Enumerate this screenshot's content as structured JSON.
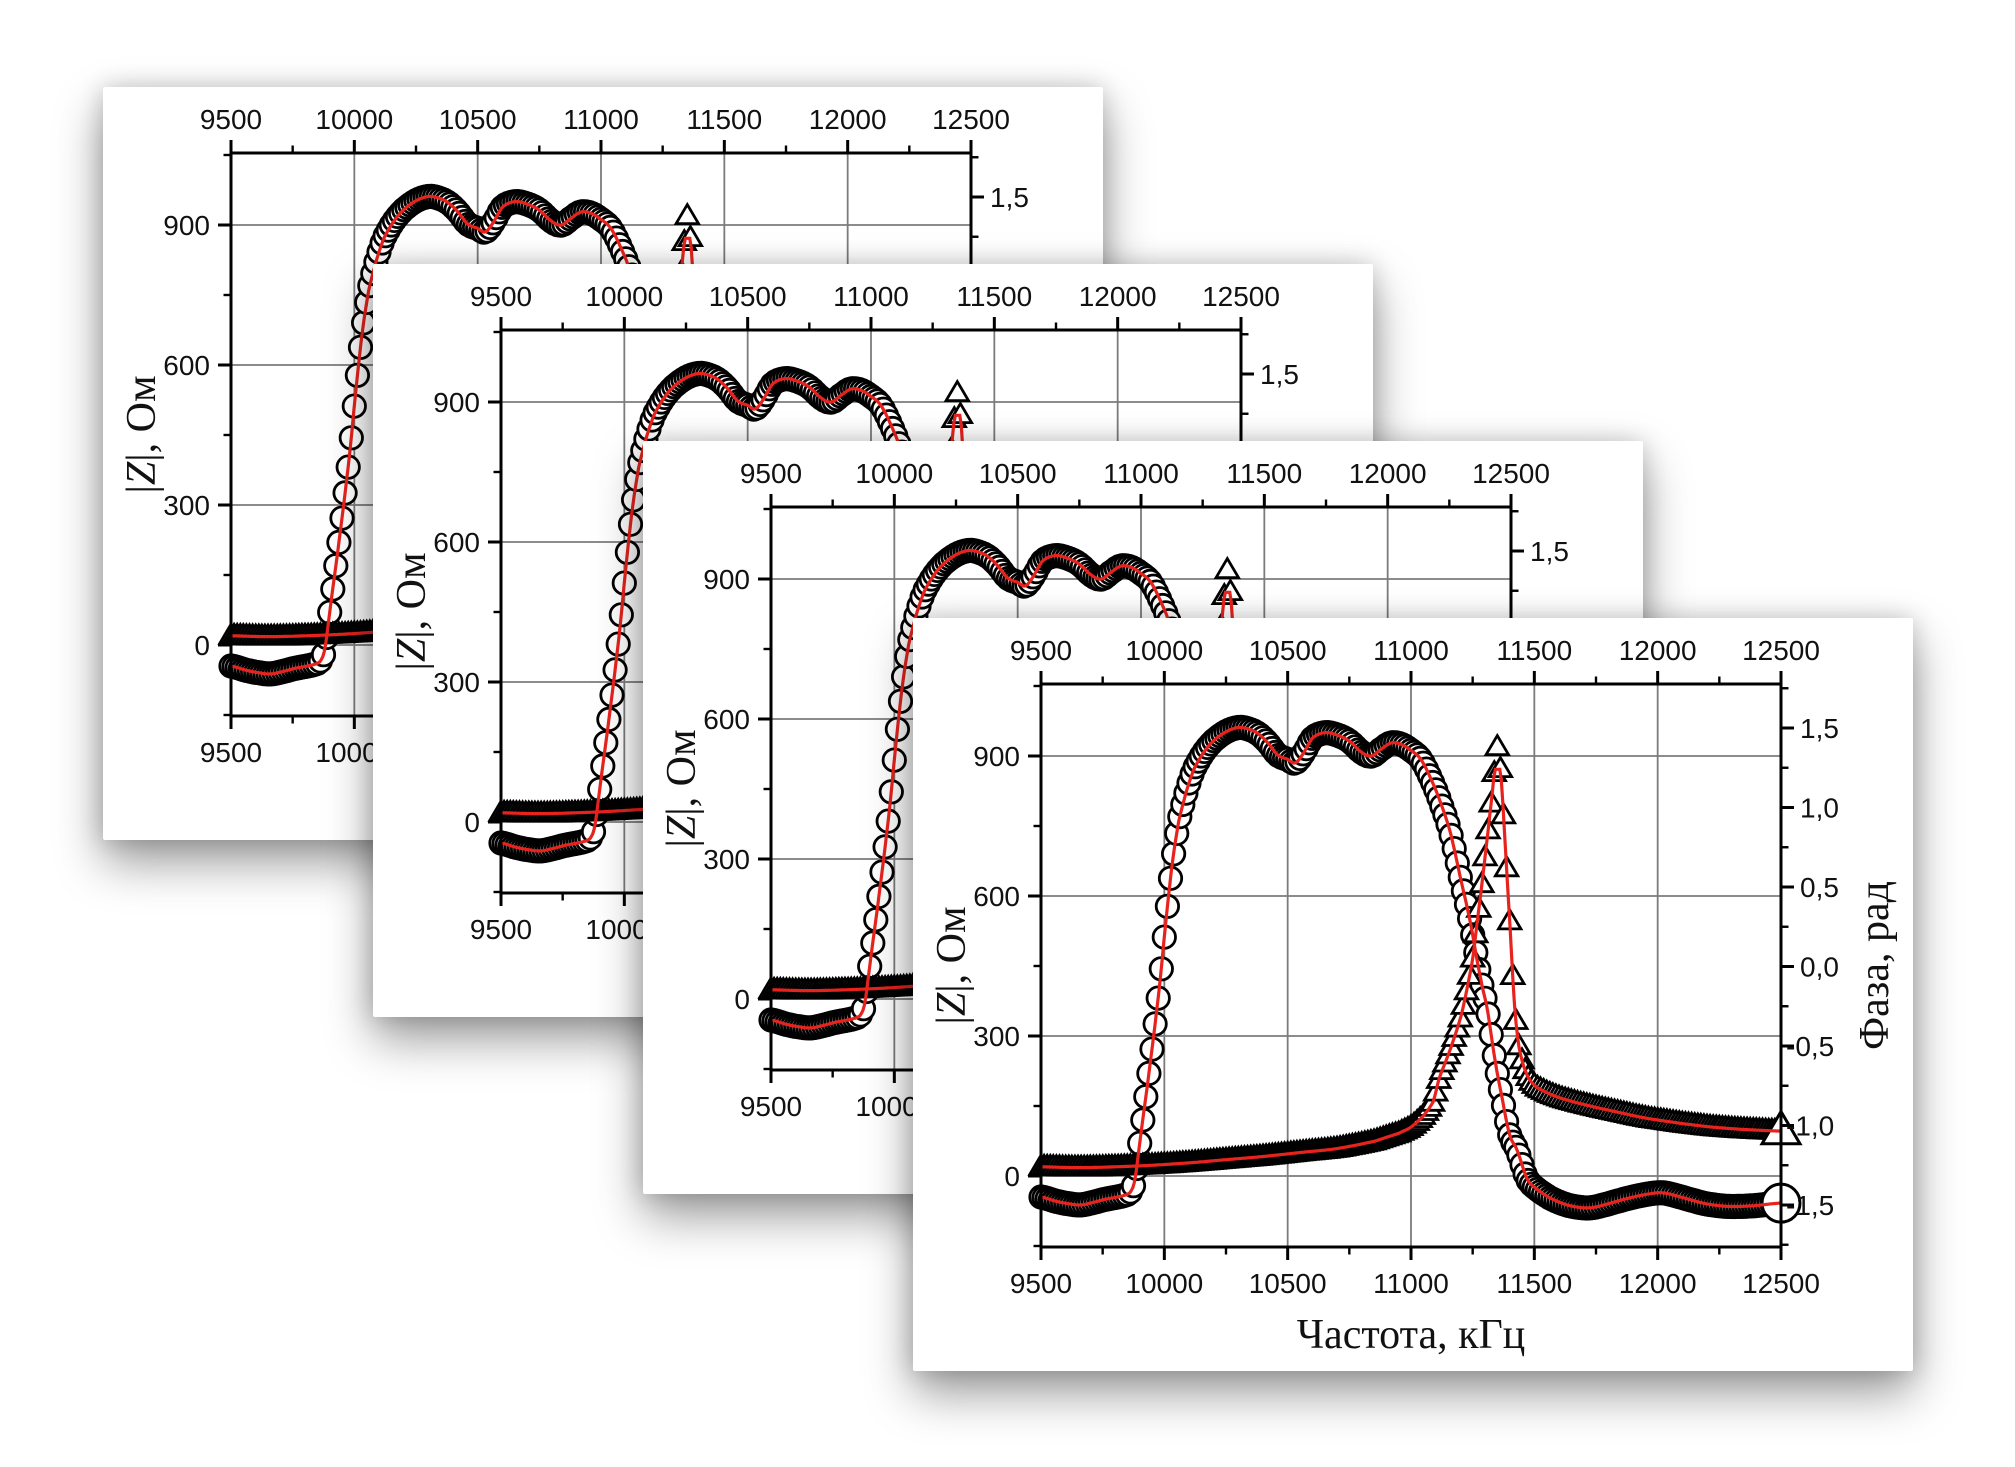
{
  "figure": {
    "background_color": "#ffffff",
    "description": "Four cascaded identical impedance/phase vs frequency plots on white cards",
    "cards": [
      {
        "name": "chart-card-1"
      },
      {
        "name": "chart-card-2"
      },
      {
        "name": "chart-card-3"
      },
      {
        "name": "chart-card-4"
      }
    ]
  },
  "chart_data": {
    "type": "scatter",
    "title": "",
    "xlabel": "Частота, кГц",
    "ylabel_left": "|Z|, Ом",
    "ylabel_right": "Фаза, рад",
    "x_axis": {
      "min": 9500,
      "max": 12500,
      "major_ticks": [
        9500,
        10000,
        10500,
        11000,
        11500,
        12000,
        12500
      ],
      "tick_labels": [
        "9500",
        "10000",
        "10500",
        "11000",
        "11500",
        "12000",
        "12500"
      ],
      "minor_step": 250,
      "mirrored_top_axis": true
    },
    "y_axis_left": {
      "min": -152,
      "max": 1054,
      "major_ticks": [
        0,
        300,
        600,
        900
      ],
      "tick_labels": [
        "0",
        "300",
        "600",
        "900"
      ],
      "minor_step": 150,
      "grid_on_majors": true
    },
    "y_axis_right": {
      "min": -1.764,
      "max": 1.777,
      "major_ticks": [
        1.5,
        1.0,
        0.5,
        0.0,
        -0.5,
        -1.0,
        -1.5
      ],
      "tick_labels": [
        "1,5",
        "1,0",
        "0,5",
        "0,0",
        "-0,5",
        "-1,0",
        "-1,5"
      ],
      "minor_step": 0.25
    },
    "grid": {
      "on": true,
      "color": "#7b7b7b"
    },
    "legend": {
      "on": false
    },
    "colors": {
      "marker_stroke": "#000000",
      "marker_fill": "#ffffff",
      "fit_line": "#e8231d",
      "frame": "#000000"
    },
    "sampling": {
      "marker_step_khz": 12.5,
      "fit_step_khz": 6,
      "end_marker_scale": 1.7
    },
    "series": [
      {
        "name": "impedance-magnitude",
        "axis": "left",
        "marker": "circle",
        "points": [
          [
            9500,
            -45
          ],
          [
            9560,
            -54
          ],
          [
            9620,
            -60
          ],
          [
            9660,
            -62
          ],
          [
            9700,
            -58
          ],
          [
            9760,
            -50
          ],
          [
            9820,
            -44
          ],
          [
            9860,
            -36
          ],
          [
            9880,
            -10
          ],
          [
            9900,
            70
          ],
          [
            9920,
            150
          ],
          [
            9940,
            230
          ],
          [
            9960,
            315
          ],
          [
            9980,
            405
          ],
          [
            10000,
            512
          ],
          [
            10020,
            615
          ],
          [
            10040,
            700
          ],
          [
            10060,
            765
          ],
          [
            10090,
            825
          ],
          [
            10120,
            872
          ],
          [
            10160,
            908
          ],
          [
            10200,
            933
          ],
          [
            10250,
            952
          ],
          [
            10300,
            961
          ],
          [
            10340,
            958
          ],
          [
            10380,
            948
          ],
          [
            10420,
            928
          ],
          [
            10460,
            902
          ],
          [
            10500,
            893
          ],
          [
            10530,
            885
          ],
          [
            10560,
            903
          ],
          [
            10600,
            938
          ],
          [
            10650,
            950
          ],
          [
            10700,
            945
          ],
          [
            10750,
            932
          ],
          [
            10800,
            908
          ],
          [
            10840,
            900
          ],
          [
            10880,
            915
          ],
          [
            10920,
            928
          ],
          [
            10960,
            925
          ],
          [
            11000,
            912
          ],
          [
            11040,
            893
          ],
          [
            11080,
            852
          ],
          [
            11120,
            800
          ],
          [
            11160,
            735
          ],
          [
            11200,
            640
          ],
          [
            11240,
            545
          ],
          [
            11280,
            430
          ],
          [
            11310,
            355
          ],
          [
            11340,
            250
          ],
          [
            11370,
            165
          ],
          [
            11400,
            88
          ],
          [
            11430,
            55
          ],
          [
            11470,
            -5
          ],
          [
            11510,
            -28
          ],
          [
            11560,
            -46
          ],
          [
            11620,
            -60
          ],
          [
            11680,
            -67
          ],
          [
            11730,
            -68
          ],
          [
            11790,
            -61
          ],
          [
            11850,
            -52
          ],
          [
            11910,
            -44
          ],
          [
            11970,
            -38
          ],
          [
            12020,
            -36
          ],
          [
            12080,
            -43
          ],
          [
            12140,
            -52
          ],
          [
            12200,
            -60
          ],
          [
            12280,
            -65
          ],
          [
            12380,
            -64
          ],
          [
            12500,
            -58
          ]
        ]
      },
      {
        "name": "phase",
        "axis": "right",
        "marker": "triangle",
        "points": [
          [
            9500,
            -1.26
          ],
          [
            9650,
            -1.265
          ],
          [
            9800,
            -1.26
          ],
          [
            9950,
            -1.25
          ],
          [
            10100,
            -1.235
          ],
          [
            10250,
            -1.215
          ],
          [
            10400,
            -1.195
          ],
          [
            10550,
            -1.17
          ],
          [
            10700,
            -1.145
          ],
          [
            10850,
            -1.1
          ],
          [
            10950,
            -1.05
          ],
          [
            11000,
            -1.01
          ],
          [
            11050,
            -0.94
          ],
          [
            11090,
            -0.85
          ],
          [
            11115,
            -0.7
          ],
          [
            11145,
            -0.58
          ],
          [
            11175,
            -0.45
          ],
          [
            11205,
            -0.3
          ],
          [
            11230,
            -0.12
          ],
          [
            11250,
            0.05
          ],
          [
            11270,
            0.3
          ],
          [
            11290,
            0.55
          ],
          [
            11310,
            0.82
          ],
          [
            11327,
            1.05
          ],
          [
            11340,
            1.25
          ],
          [
            11350,
            1.38
          ],
          [
            11362,
            1.25
          ],
          [
            11375,
            0.95
          ],
          [
            11390,
            0.55
          ],
          [
            11405,
            0.15
          ],
          [
            11420,
            -0.25
          ],
          [
            11435,
            -0.48
          ],
          [
            11455,
            -0.62
          ],
          [
            11480,
            -0.71
          ],
          [
            11510,
            -0.76
          ],
          [
            11560,
            -0.8
          ],
          [
            11610,
            -0.83
          ],
          [
            11680,
            -0.86
          ],
          [
            11760,
            -0.89
          ],
          [
            11850,
            -0.92
          ],
          [
            11940,
            -0.95
          ],
          [
            12020,
            -0.97
          ],
          [
            12110,
            -0.99
          ],
          [
            12220,
            -1.01
          ],
          [
            12350,
            -1.025
          ],
          [
            12500,
            -1.035
          ]
        ]
      }
    ],
    "fits": [
      {
        "name": "impedance-fit-line",
        "series": "impedance-magnitude",
        "color": "#e8231d"
      },
      {
        "name": "phase-fit-line",
        "series": "phase",
        "color": "#e8231d",
        "peak_cap": 1.24
      }
    ]
  }
}
